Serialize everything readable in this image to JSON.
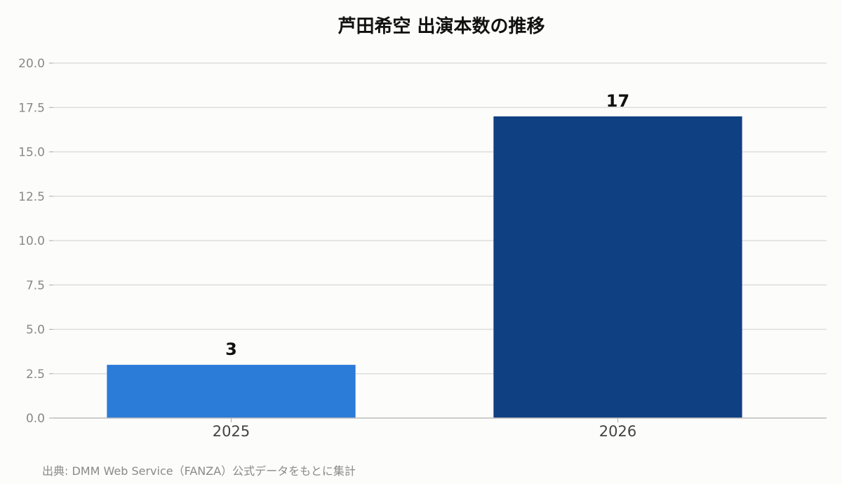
{
  "chart_data": {
    "type": "bar",
    "title": "芦田希空 出演本数の推移",
    "categories": [
      "2025",
      "2026"
    ],
    "values": [
      3,
      17
    ],
    "data_labels": [
      "3",
      "17"
    ],
    "bar_colors": [
      "#2b7bd8",
      "#0f4082"
    ],
    "ylim": [
      0,
      20
    ],
    "yticks": [
      0,
      2.5,
      5,
      7.5,
      10,
      12.5,
      15,
      17.5,
      20
    ],
    "ytick_labels": [
      "0.0",
      "2.5",
      "5.0",
      "7.5",
      "10.0",
      "12.5",
      "15.0",
      "17.5",
      "20.0"
    ],
    "grid": true,
    "legend": "none",
    "xlabel": "",
    "ylabel": ""
  },
  "source_note": "出典: DMM Web Service（FANZA）公式データをもとに集計",
  "colors": {
    "background": "#fcfcfa",
    "grid": "#dddddd",
    "axis": "#bbbbbb"
  }
}
